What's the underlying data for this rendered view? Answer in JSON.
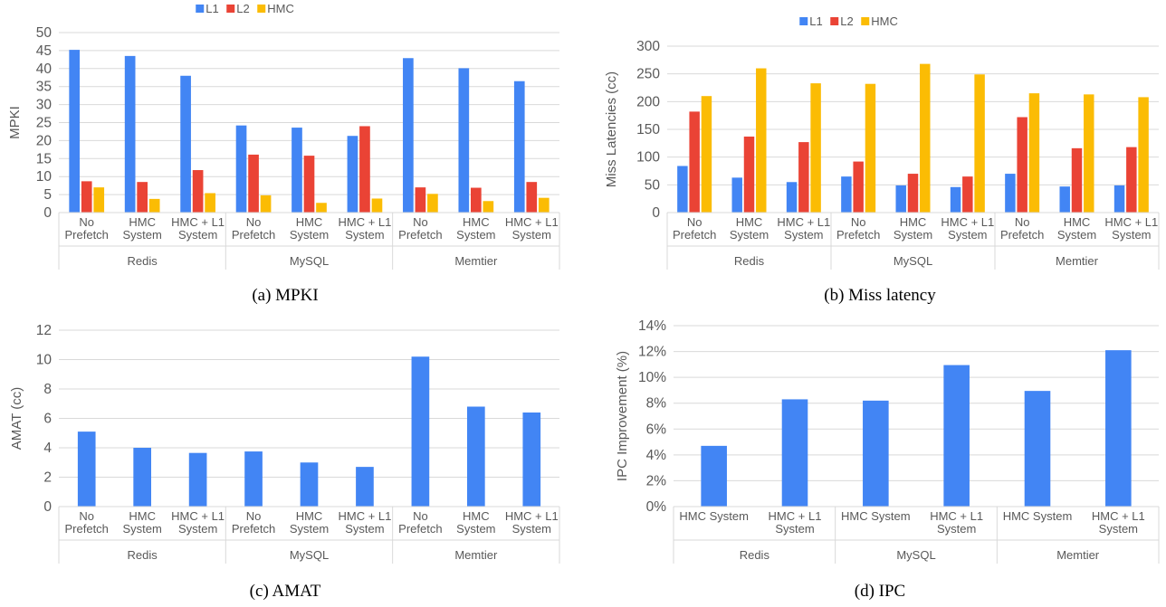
{
  "chart_data": [
    {
      "id": "a",
      "type": "bar",
      "caption": "(a) MPKI",
      "ylabel": "MPKI",
      "ylim": [
        0,
        50
      ],
      "yticks": [
        "0",
        "5",
        "10",
        "15",
        "20",
        "25",
        "30",
        "35",
        "40",
        "45",
        "50"
      ],
      "legend_position": "top-center",
      "groups": [
        "Redis",
        "MySQL",
        "Memtier"
      ],
      "categories": [
        [
          "No",
          "Prefetch"
        ],
        [
          "HMC",
          "System"
        ],
        [
          "HMC + L1",
          "System"
        ],
        [
          "No",
          "Prefetch"
        ],
        [
          "HMC",
          "System"
        ],
        [
          "HMC + L1",
          "System"
        ],
        [
          "No",
          "Prefetch"
        ],
        [
          "HMC",
          "System"
        ],
        [
          "HMC + L1",
          "System"
        ]
      ],
      "series": [
        {
          "name": "L1",
          "color": "#4285f4",
          "values": [
            45.2,
            43.5,
            38,
            24.2,
            23.6,
            21.3,
            42.9,
            40.1,
            36.5
          ]
        },
        {
          "name": "L2",
          "color": "#ea4335",
          "values": [
            8.7,
            8.5,
            11.8,
            16.1,
            15.8,
            24,
            7,
            6.9,
            8.5
          ]
        },
        {
          "name": "HMC",
          "color": "#fbbc04",
          "values": [
            7,
            3.8,
            5.4,
            4.8,
            2.7,
            3.9,
            5.2,
            3.2,
            4.1
          ]
        }
      ]
    },
    {
      "id": "b",
      "type": "bar",
      "caption": "(b) Miss latency",
      "ylabel": "Miss Latencies (cc)",
      "ylim": [
        0,
        300
      ],
      "yticks": [
        "0",
        "50",
        "100",
        "150",
        "200",
        "250",
        "300"
      ],
      "legend_position": "top-center",
      "groups": [
        "Redis",
        "MySQL",
        "Memtier"
      ],
      "categories": [
        [
          "No",
          "Prefetch"
        ],
        [
          "HMC",
          "System"
        ],
        [
          "HMC + L1",
          "System"
        ],
        [
          "No",
          "Prefetch"
        ],
        [
          "HMC",
          "System"
        ],
        [
          "HMC + L1",
          "System"
        ],
        [
          "No",
          "Prefetch"
        ],
        [
          "HMC",
          "System"
        ],
        [
          "HMC + L1",
          "System"
        ]
      ],
      "series": [
        {
          "name": "L1",
          "color": "#4285f4",
          "values": [
            84,
            63,
            55,
            65,
            49,
            46,
            70,
            47,
            49
          ]
        },
        {
          "name": "L2",
          "color": "#ea4335",
          "values": [
            182,
            137,
            127,
            92,
            70,
            65,
            172,
            116,
            118
          ]
        },
        {
          "name": "HMC",
          "color": "#fbbc04",
          "values": [
            210,
            260,
            233,
            232,
            268,
            249,
            215,
            213,
            208
          ]
        }
      ]
    },
    {
      "id": "c",
      "type": "bar",
      "caption": "(c) AMAT",
      "ylabel": "AMAT (cc)",
      "ylim": [
        0,
        12
      ],
      "yticks": [
        "0",
        "2",
        "4",
        "6",
        "8",
        "10",
        "12"
      ],
      "groups": [
        "Redis",
        "MySQL",
        "Memtier"
      ],
      "categories": [
        [
          "No",
          "Prefetch"
        ],
        [
          "HMC",
          "System"
        ],
        [
          "HMC + L1",
          "System"
        ],
        [
          "No",
          "Prefetch"
        ],
        [
          "HMC",
          "System"
        ],
        [
          "HMC + L1",
          "System"
        ],
        [
          "No",
          "Prefetch"
        ],
        [
          "HMC",
          "System"
        ],
        [
          "HMC + L1",
          "System"
        ]
      ],
      "series": [
        {
          "color": "#4285f4",
          "values": [
            5.1,
            4.0,
            3.65,
            3.75,
            3.0,
            2.7,
            10.2,
            6.8,
            6.4
          ]
        }
      ]
    },
    {
      "id": "d",
      "type": "bar",
      "caption": "(d) IPC",
      "ylabel": "IPC Improvement (%)",
      "ylim": [
        0,
        14
      ],
      "yticks": [
        "0%",
        "2%",
        "4%",
        "6%",
        "8%",
        "10%",
        "12%",
        "14%"
      ],
      "groups": [
        "Redis",
        "MySQL",
        "Memtier"
      ],
      "categories": [
        [
          "HMC System"
        ],
        [
          "HMC + L1",
          "System"
        ],
        [
          "HMC System"
        ],
        [
          "HMC + L1",
          "System"
        ],
        [
          "HMC System"
        ],
        [
          "HMC + L1",
          "System"
        ]
      ],
      "series": [
        {
          "color": "#4285f4",
          "values": [
            4.7,
            8.3,
            8.2,
            10.95,
            8.95,
            12.1
          ]
        }
      ]
    }
  ]
}
